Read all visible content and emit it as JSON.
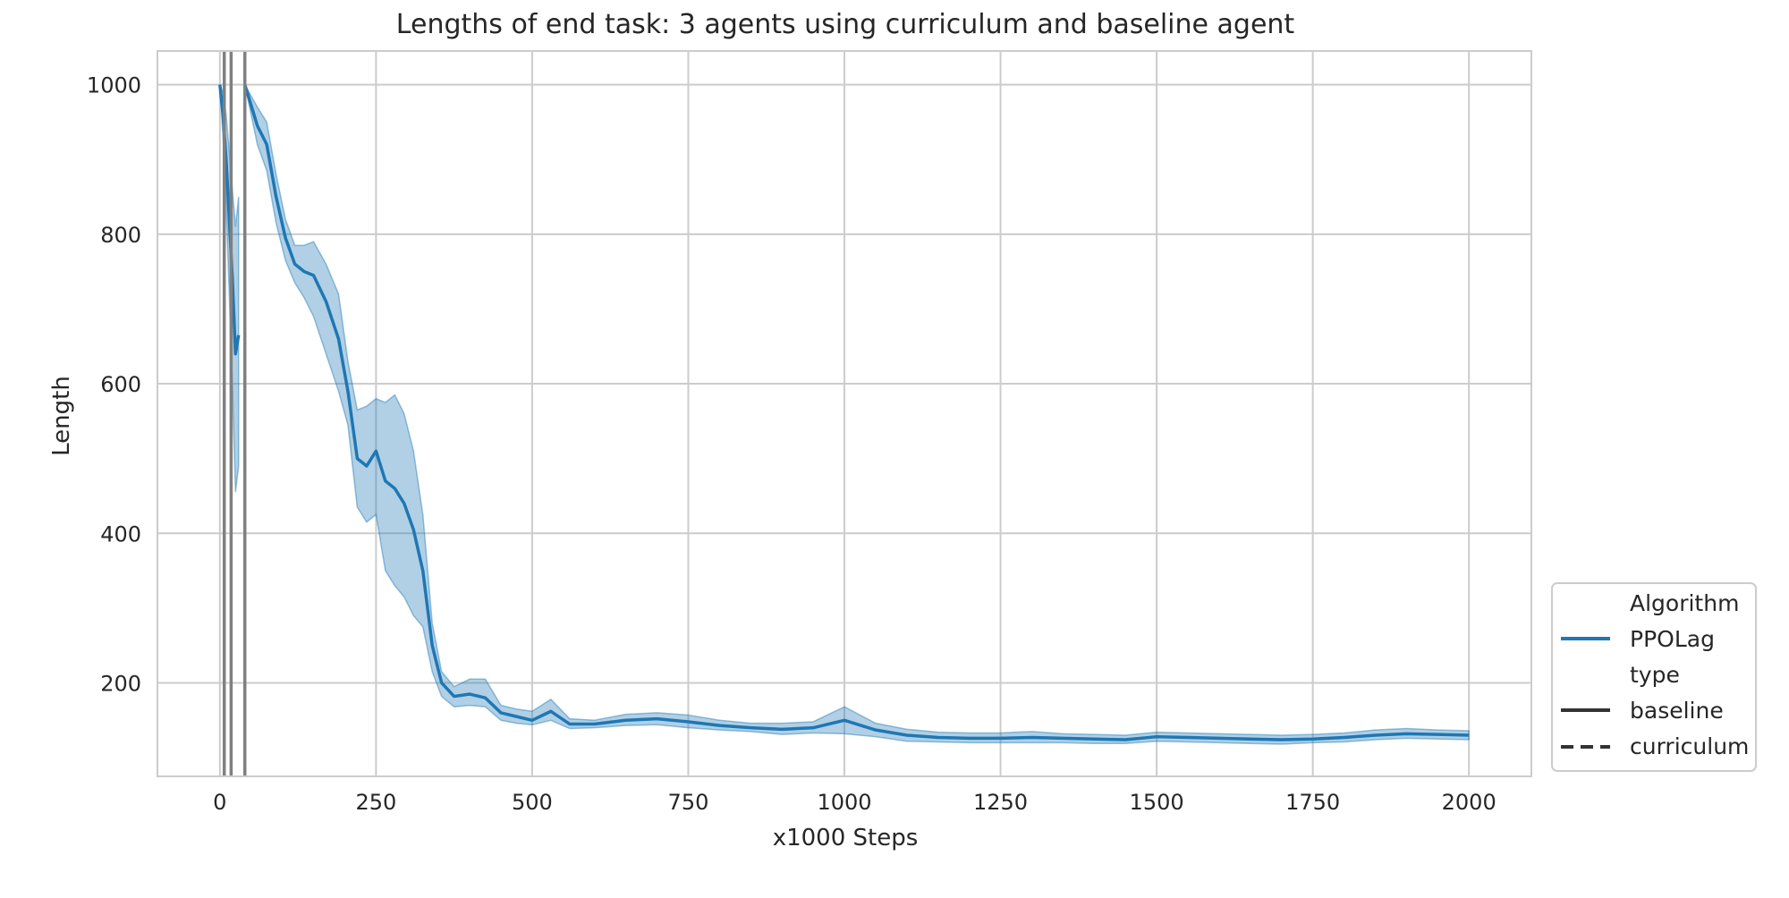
{
  "chart_data": {
    "type": "line",
    "title": "Lengths of end task: 3 agents using curriculum and baseline agent",
    "xlabel": "x1000 Steps",
    "ylabel": "Length",
    "xlim": [
      -100,
      2100
    ],
    "ylim": [
      75,
      1045
    ],
    "xticks": [
      0,
      250,
      500,
      750,
      1000,
      1250,
      1500,
      1750,
      2000
    ],
    "yticks": [
      200,
      400,
      600,
      800,
      1000
    ],
    "grid": true,
    "legend": {
      "placement": "lower-right-outside",
      "title_algorithm": "Algorithm",
      "algorithm_entries": [
        {
          "label": "PPOLag",
          "color": "#1f77b4",
          "style": "solid"
        }
      ],
      "title_type": "type",
      "type_entries": [
        {
          "label": "baseline",
          "color": "#333333",
          "style": "solid"
        },
        {
          "label": "curriculum",
          "color": "#333333",
          "style": "dashed"
        }
      ]
    },
    "vlines": [
      7,
      18,
      40
    ],
    "colors": {
      "series": "#1f77b4",
      "band": "#1f77b4",
      "vline": "#808080",
      "grid": "#cccccc"
    },
    "series": [
      {
        "name": "PPOLag",
        "type": "baseline",
        "x": [
          40,
          60,
          75,
          90,
          105,
          120,
          135,
          150,
          170,
          190,
          205,
          220,
          235,
          250,
          265,
          280,
          295,
          310,
          325,
          340,
          355,
          375,
          400,
          425,
          450,
          475,
          500,
          530,
          560,
          600,
          650,
          700,
          750,
          800,
          850,
          900,
          950,
          1000,
          1050,
          1100,
          1150,
          1200,
          1250,
          1300,
          1350,
          1400,
          1450,
          1500,
          1550,
          1600,
          1650,
          1700,
          1750,
          1800,
          1850,
          1900,
          1950,
          2000
        ],
        "y": [
          1000,
          945,
          920,
          850,
          795,
          760,
          750,
          745,
          710,
          660,
          590,
          500,
          490,
          510,
          470,
          460,
          440,
          405,
          350,
          250,
          200,
          182,
          185,
          180,
          160,
          155,
          150,
          162,
          145,
          145,
          150,
          152,
          148,
          143,
          140,
          138,
          140,
          150,
          137,
          130,
          127,
          126,
          126,
          127,
          126,
          125,
          124,
          128,
          127,
          126,
          125,
          124,
          125,
          127,
          130,
          132,
          131,
          130
        ],
        "upper": [
          1000,
          970,
          950,
          880,
          820,
          785,
          785,
          790,
          760,
          720,
          630,
          565,
          570,
          580,
          575,
          585,
          560,
          510,
          425,
          280,
          215,
          195,
          205,
          205,
          170,
          165,
          162,
          178,
          152,
          150,
          158,
          160,
          157,
          150,
          146,
          146,
          148,
          168,
          146,
          138,
          134,
          133,
          133,
          135,
          132,
          131,
          130,
          134,
          133,
          132,
          131,
          130,
          131,
          133,
          137,
          139,
          137,
          136
        ],
        "lower": [
          1000,
          920,
          885,
          815,
          765,
          735,
          715,
          690,
          640,
          590,
          545,
          435,
          415,
          425,
          350,
          330,
          315,
          290,
          275,
          215,
          182,
          168,
          170,
          168,
          150,
          146,
          144,
          150,
          139,
          140,
          143,
          144,
          140,
          137,
          135,
          131,
          133,
          132,
          128,
          122,
          121,
          120,
          120,
          120,
          120,
          119,
          119,
          122,
          121,
          120,
          119,
          118,
          120,
          121,
          124,
          126,
          125,
          124
        ]
      },
      {
        "name": "PPOLag",
        "type": "curriculum",
        "x": [
          0,
          5,
          10,
          15,
          20,
          25,
          30
        ],
        "y": [
          1000,
          960,
          900,
          820,
          740,
          640,
          665
        ],
        "upper": [
          1000,
          990,
          960,
          910,
          860,
          810,
          850
        ],
        "lower": [
          1000,
          930,
          840,
          720,
          600,
          455,
          490
        ]
      }
    ]
  }
}
